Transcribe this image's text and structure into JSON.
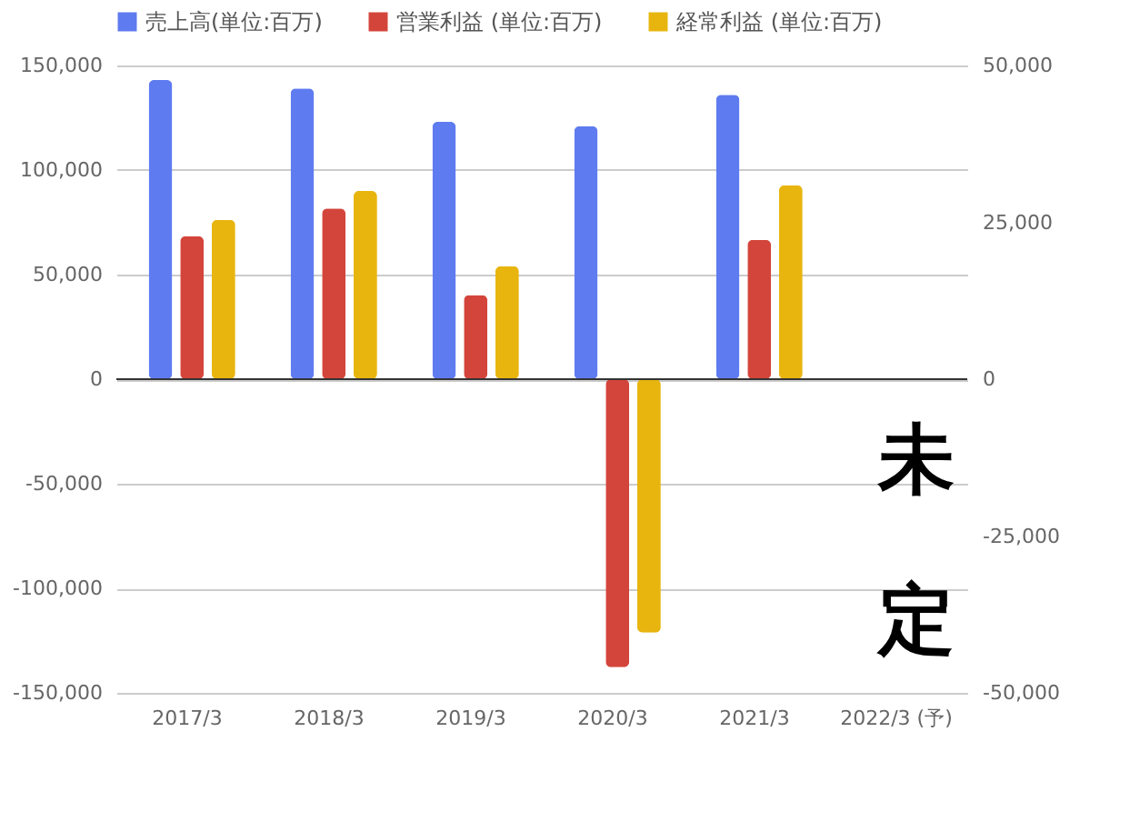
{
  "chart_data": {
    "type": "bar",
    "categories": [
      "2017/3",
      "2018/3",
      "2019/3",
      "2020/3",
      "2021/3",
      "2022/3 (予)"
    ],
    "series": [
      {
        "name": "売上高(単位:百万)",
        "color": "#5f7bf0",
        "values": [
          143000,
          139000,
          123000,
          121000,
          136000,
          null
        ]
      },
      {
        "name": "営業利益 (単位:百万)",
        "color": "#d3453b",
        "axis": "y2",
        "values": [
          22800,
          27200,
          13400,
          -45900,
          22200,
          null
        ]
      },
      {
        "name": "経常利益 (単位:百万)",
        "color": "#e8b50f",
        "axis": "y2",
        "values": [
          25400,
          30000,
          18000,
          -40400,
          30900,
          null
        ]
      }
    ],
    "ylim": [
      -150000,
      150000
    ],
    "yticks": [
      {
        "value": -150000,
        "label": "-150,000"
      },
      {
        "value": -100000,
        "label": "-100,000"
      },
      {
        "value": -50000,
        "label": "-50,000"
      },
      0,
      {
        "value": 50000,
        "label": "50,000"
      },
      {
        "value": 100000,
        "label": "100,000"
      },
      {
        "value": 150000,
        "label": "150,000"
      }
    ],
    "y2lim": [
      -50000,
      50000
    ],
    "y2ticks": [
      {
        "value": -50000,
        "label": "-50,000"
      },
      {
        "value": -25000,
        "label": "-25,000"
      },
      0,
      {
        "value": 25000,
        "label": "25,000"
      },
      {
        "value": 50000,
        "label": "50,000"
      }
    ],
    "annotations": [
      "未定"
    ],
    "grid": "y",
    "legend": "top"
  }
}
